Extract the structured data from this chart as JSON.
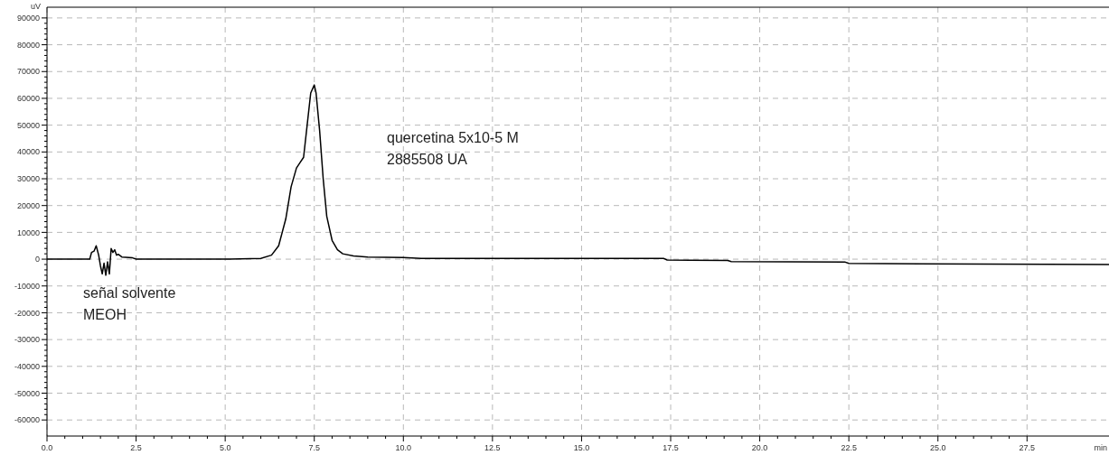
{
  "chart_data": {
    "type": "line",
    "xlabel": "min",
    "ylabel": "uV",
    "xlim": [
      0,
      29.8
    ],
    "ylim": [
      -66000,
      94000
    ],
    "xticks": [
      {
        "value": 0,
        "label": "0.0"
      },
      {
        "value": 2.5,
        "label": "2.5"
      },
      {
        "value": 5,
        "label": "5.0"
      },
      {
        "value": 7.5,
        "label": "7.5"
      },
      {
        "value": 10,
        "label": "10.0"
      },
      {
        "value": 12.5,
        "label": "12.5"
      },
      {
        "value": 15,
        "label": "15.0"
      },
      {
        "value": 17.5,
        "label": "17.5"
      },
      {
        "value": 20,
        "label": "20.0"
      },
      {
        "value": 22.5,
        "label": "22.5"
      },
      {
        "value": 25,
        "label": "25.0"
      },
      {
        "value": 27.5,
        "label": "27.5"
      }
    ],
    "yticks": [
      -60000,
      -50000,
      -40000,
      -30000,
      -20000,
      -10000,
      0,
      10000,
      20000,
      30000,
      40000,
      50000,
      60000,
      70000,
      80000,
      90000
    ],
    "grid": true,
    "line_style": "solid",
    "marker": "none",
    "x": [
      0,
      1.2,
      1.25,
      1.32,
      1.38,
      1.45,
      1.5,
      1.55,
      1.6,
      1.65,
      1.7,
      1.75,
      1.8,
      1.85,
      1.9,
      1.95,
      2.0,
      2.1,
      2.2,
      2.4,
      2.5,
      5.0,
      6.0,
      6.3,
      6.5,
      6.7,
      6.85,
      7.0,
      7.1,
      7.2,
      7.3,
      7.4,
      7.5,
      7.55,
      7.65,
      7.75,
      7.85,
      8.0,
      8.15,
      8.3,
      8.6,
      9.0,
      10.0,
      10.5,
      17.3,
      17.4,
      19.1,
      19.2,
      22.4,
      22.5,
      29.8
    ],
    "series": [
      {
        "color": "#000000",
        "values": [
          0,
          0,
          2500,
          3000,
          5000,
          1500,
          -2500,
          -5500,
          -1500,
          -6000,
          -1000,
          -5500,
          4000,
          2500,
          3500,
          1500,
          1800,
          800,
          700,
          500,
          0,
          0,
          300,
          1500,
          5000,
          15000,
          27000,
          34000,
          36000,
          38000,
          50000,
          62000,
          65000,
          62000,
          48000,
          30000,
          16000,
          7000,
          3500,
          2000,
          1200,
          800,
          600,
          300,
          300,
          -300,
          -500,
          -900,
          -1100,
          -1600,
          -2000
        ]
      }
    ],
    "annotations": [
      "quercetina 5x10-5 M",
      "2885508 UA",
      "señal solvente",
      "MEOH"
    ]
  }
}
